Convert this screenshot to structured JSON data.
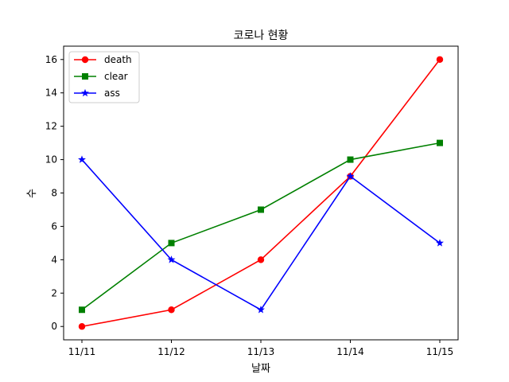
{
  "chart_data": {
    "type": "line",
    "title": "코로나 현황",
    "xlabel": "날짜",
    "ylabel": "수",
    "categories": [
      "11/11",
      "11/12",
      "11/13",
      "11/14",
      "11/15"
    ],
    "ylim": [
      -0.8,
      16.8
    ],
    "yticks": [
      0,
      2,
      4,
      6,
      8,
      10,
      12,
      14,
      16
    ],
    "grid": false,
    "legend_position": "top-left",
    "series": [
      {
        "name": "death",
        "values": [
          0,
          1,
          4,
          9,
          16
        ],
        "color": "#ff0000",
        "marker": "circle"
      },
      {
        "name": "clear",
        "values": [
          1,
          5,
          7,
          10,
          11
        ],
        "color": "#008000",
        "marker": "square"
      },
      {
        "name": "ass",
        "values": [
          10,
          4,
          1,
          9,
          5
        ],
        "color": "#0000ff",
        "marker": "star"
      }
    ]
  }
}
